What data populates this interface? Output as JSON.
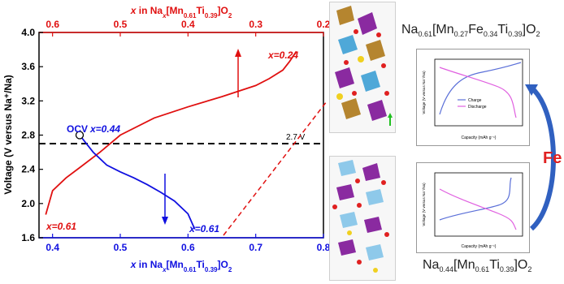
{
  "chart_data": {
    "type": "line",
    "x_bottom": {
      "label": "x in Na_x[Mn_0.61Ti_0.39]O_2",
      "range": [
        0.38,
        0.8
      ],
      "ticks": [
        "0.4",
        "0.5",
        "0.6",
        "0.7",
        "0.8"
      ],
      "color": "#1010e0"
    },
    "x_top": {
      "label": "x in Na_x[Mn_0.61Ti_0.39]O_2",
      "range": [
        0.62,
        0.2
      ],
      "ticks": [
        "0.6",
        "0.5",
        "0.4",
        "0.3",
        "0.2"
      ],
      "color": "#e01010"
    },
    "y": {
      "label": "Voltage (V versus Na⁺/Na)",
      "range": [
        1.6,
        4.0
      ],
      "ticks": [
        "1.6",
        "2.0",
        "2.4",
        "2.8",
        "3.2",
        "3.6",
        "4.0"
      ]
    },
    "series": [
      {
        "axis": "top",
        "color": "#e01010",
        "x": [
          0.61,
          0.6,
          0.58,
          0.56,
          0.53,
          0.5,
          0.45,
          0.4,
          0.35,
          0.3,
          0.28,
          0.26,
          0.25,
          0.24
        ],
        "y": [
          1.87,
          2.15,
          2.3,
          2.42,
          2.6,
          2.8,
          3.0,
          3.13,
          3.25,
          3.38,
          3.46,
          3.56,
          3.66,
          3.78
        ]
      },
      {
        "axis": "bottom",
        "color": "#1010e0",
        "x": [
          0.44,
          0.46,
          0.48,
          0.5,
          0.52,
          0.54,
          0.56,
          0.58,
          0.6,
          0.61
        ],
        "y": [
          2.8,
          2.6,
          2.45,
          2.37,
          2.3,
          2.22,
          2.13,
          2.03,
          1.88,
          1.7
        ]
      }
    ],
    "reference_line": {
      "y": 2.7,
      "label": "2.7 V"
    },
    "annotations": {
      "red_start": "x=0.61",
      "red_end": "x=0.24",
      "blue_start": "x=0.44",
      "blue_end": "x=0.61",
      "ocv": "OCV"
    }
  },
  "formulas": {
    "top": {
      "a": "Na",
      "a_sub": "0.61",
      "b": "[Mn",
      "b_sub": "0.27",
      "c": "Fe",
      "c_sub": "0.34",
      "d": "Ti",
      "d_sub": "0.39",
      "e": "]O",
      "e_sub": "2"
    },
    "bottom": {
      "a": "Na",
      "a_sub": "0.44",
      "b": "[Mn",
      "b_sub": "0.61",
      "c": "Ti",
      "c_sub": "0.39",
      "d": "]O",
      "d_sub": "2"
    }
  },
  "fe_label": "Fe",
  "insets": {
    "top": {
      "legend": [
        "Charge",
        "Discharge"
      ],
      "xlabel": "Capacity (mAh g⁻¹)",
      "ylabel": "Voltage (V versus Na⁺/Na)"
    },
    "bottom": {
      "xlabel": "Capacity (mAh g⁻¹)",
      "ylabel": "Voltage (V versus Na⁺/Na)"
    }
  },
  "colors": {
    "red": "#e01010",
    "blue": "#1010e0",
    "pink": "#e060e0",
    "arrow_blue": "#3060c0"
  }
}
